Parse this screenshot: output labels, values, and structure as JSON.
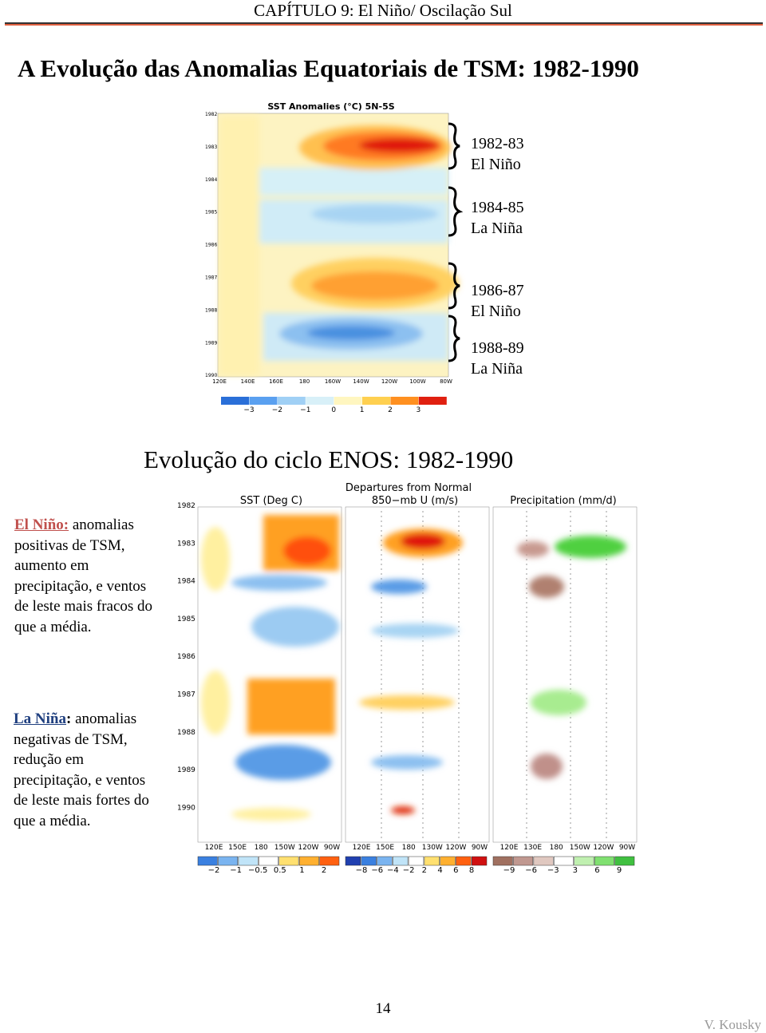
{
  "header": {
    "chapter": "CAPÍTULO 9: El Niño/ Oscilação Sul"
  },
  "title": "A Evolução das Anomalias Equatoriais de TSM: 1982-1990",
  "figure1": {
    "title": "SST Anomalies (°C) 5N-5S",
    "years": [
      "1982",
      "1983",
      "1984",
      "1985",
      "1986",
      "1987",
      "1988",
      "1989",
      "1990"
    ],
    "longitudes": [
      "120E",
      "140E",
      "160E",
      "180",
      "160W",
      "140W",
      "120W",
      "100W",
      "80W"
    ],
    "colorbar": [
      "−3",
      "−2",
      "−1",
      "0",
      "1",
      "2",
      "3"
    ],
    "annotations": [
      {
        "period": "1982-83",
        "phase": "El Niño"
      },
      {
        "period": "1984-85",
        "phase": "La Niña"
      },
      {
        "period": "1986-87",
        "phase": "El Niño"
      },
      {
        "period": "1988-89",
        "phase": "La Niña"
      }
    ]
  },
  "section_title": "Evolução do ciclo ENOS: 1982-1990",
  "figure2": {
    "header": "Departures from Normal",
    "years": [
      "1982",
      "1983",
      "1984",
      "1985",
      "1986",
      "1987",
      "1988",
      "1989",
      "1990"
    ],
    "panels": [
      {
        "title": "SST (Deg C)",
        "longitudes": [
          "120E",
          "150E",
          "180",
          "150W",
          "120W",
          "90W"
        ],
        "colorbar": [
          "−2",
          "−1",
          "−0.5",
          "0.5",
          "1",
          "2"
        ]
      },
      {
        "title": "850−mb U (m/s)",
        "longitudes": [
          "120E",
          "150E",
          "180",
          "130W",
          "120W",
          "90W"
        ],
        "colorbar": [
          "−8",
          "−6",
          "−4",
          "−2",
          "2",
          "4",
          "6",
          "8"
        ]
      },
      {
        "title": "Precipitation (mm/d)",
        "longitudes": [
          "120E",
          "130E",
          "180",
          "150W",
          "120W",
          "90W"
        ],
        "colorbar": [
          "−9",
          "−6",
          "−3",
          "3",
          "6",
          "9"
        ]
      }
    ]
  },
  "el_nino": {
    "label": "El Niño:",
    "text": "anomalias positivas de TSM, aumento em precipitação, e ventos de leste mais fracos do que a média."
  },
  "la_nina": {
    "label": "La Niña",
    "colon": ":",
    "text": "anomalias negativas de TSM, redução em precipitação, e ventos de leste mais fortes do que a média."
  },
  "footer": {
    "page": "14",
    "author": "V. Kousky"
  }
}
